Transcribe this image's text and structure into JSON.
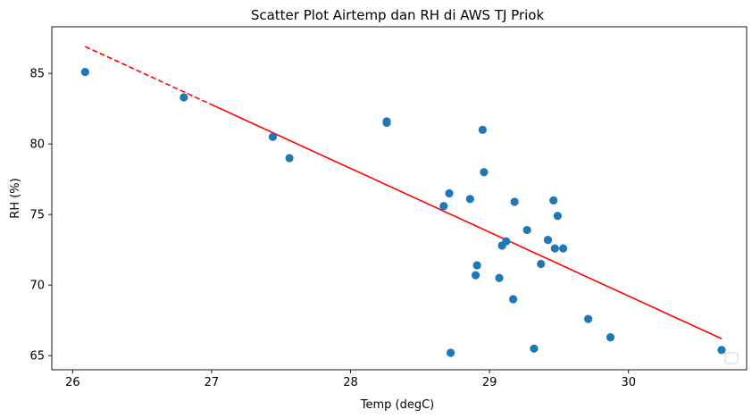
{
  "chart_data": {
    "type": "scatter",
    "title": "Scatter Plot Airtemp dan RH di AWS TJ Priok",
    "xlabel": "Temp (degC)",
    "ylabel": "RH (%)",
    "xlim": [
      25.85,
      30.85
    ],
    "ylim": [
      64.0,
      88.3
    ],
    "xticks": [
      26,
      27,
      28,
      29,
      30
    ],
    "yticks": [
      65,
      70,
      75,
      80,
      85
    ],
    "grid": false,
    "legend": "lower-right",
    "points": [
      {
        "x": 26.09,
        "y": 85.1
      },
      {
        "x": 26.8,
        "y": 83.3
      },
      {
        "x": 27.44,
        "y": 80.5
      },
      {
        "x": 27.56,
        "y": 79.0
      },
      {
        "x": 28.26,
        "y": 81.5
      },
      {
        "x": 28.26,
        "y": 81.6
      },
      {
        "x": 28.67,
        "y": 75.6
      },
      {
        "x": 28.71,
        "y": 76.5
      },
      {
        "x": 28.72,
        "y": 65.2
      },
      {
        "x": 28.86,
        "y": 76.1
      },
      {
        "x": 28.91,
        "y": 71.4
      },
      {
        "x": 28.9,
        "y": 70.7
      },
      {
        "x": 28.95,
        "y": 81.0
      },
      {
        "x": 28.96,
        "y": 78.0
      },
      {
        "x": 29.07,
        "y": 70.5
      },
      {
        "x": 29.09,
        "y": 72.8
      },
      {
        "x": 29.12,
        "y": 73.1
      },
      {
        "x": 29.17,
        "y": 69.0
      },
      {
        "x": 29.18,
        "y": 75.9
      },
      {
        "x": 29.27,
        "y": 73.9
      },
      {
        "x": 29.32,
        "y": 65.5
      },
      {
        "x": 29.37,
        "y": 71.5
      },
      {
        "x": 29.42,
        "y": 73.2
      },
      {
        "x": 29.46,
        "y": 76.0
      },
      {
        "x": 29.47,
        "y": 72.6
      },
      {
        "x": 29.49,
        "y": 74.9
      },
      {
        "x": 29.53,
        "y": 72.6
      },
      {
        "x": 29.71,
        "y": 67.6
      },
      {
        "x": 29.87,
        "y": 66.3
      },
      {
        "x": 30.67,
        "y": 65.4
      }
    ],
    "trendline": {
      "x": [
        26.09,
        30.67
      ],
      "y": [
        86.9,
        66.2
      ]
    },
    "colors": {
      "points": "#1f77b4",
      "trendline": "#ff0000"
    }
  }
}
